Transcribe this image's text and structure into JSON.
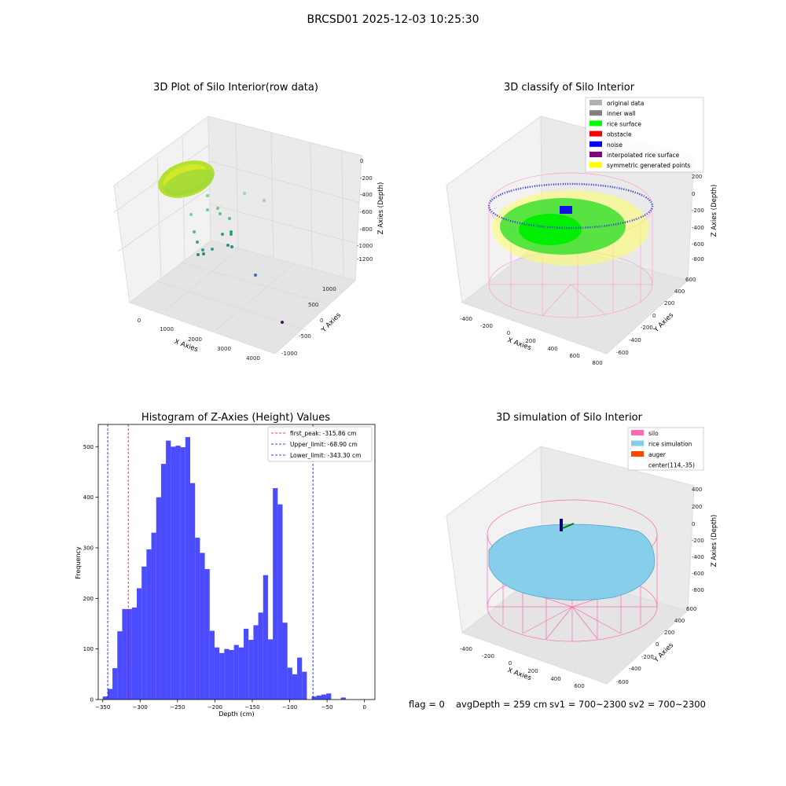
{
  "page": {
    "suptitle": "BRCSD01 2025-12-03 10:25:30",
    "status": {
      "flag": "flag = 0",
      "avg_depth": "avgDepth = 259 cm",
      "sv1": "sv1 = 700~2300",
      "sv2": "sv2 = 700~2300"
    }
  },
  "panels": {
    "raw": {
      "title": "3D Plot of Silo Interior(row data)",
      "xlabel": "X Axies",
      "ylabel": "Y Axies",
      "zlabel": "Z Axies (Depth)",
      "xticks": [
        "0",
        "1000",
        "2000",
        "3000",
        "4000"
      ],
      "yticks": [
        "1000",
        "500",
        "0",
        "-500",
        "-1000"
      ],
      "zticks": [
        "0",
        "-200",
        "-400",
        "-600",
        "-800",
        "-1000",
        "-1200"
      ]
    },
    "classify": {
      "title": "3D classify of Silo Interior",
      "xlabel": "X Axies",
      "ylabel": "Y Axies",
      "zlabel": "Z Axies (Depth)",
      "xticks": [
        "-400",
        "-200",
        "0",
        "200",
        "400",
        "600",
        "800"
      ],
      "yticks": [
        "600",
        "400",
        "200",
        "0",
        "-200",
        "-400",
        "-600"
      ],
      "zticks": [
        "200",
        "0",
        "-200",
        "-400",
        "-600",
        "-800"
      ],
      "legend": [
        {
          "label": "original data",
          "color": "#b0b0b0"
        },
        {
          "label": "inner wall",
          "color": "#808080"
        },
        {
          "label": "rice surface",
          "color": "#00ff00"
        },
        {
          "label": "obstacle",
          "color": "#ff0000"
        },
        {
          "label": "noise",
          "color": "#0000ff"
        },
        {
          "label": "interpolated rice surface",
          "color": "#800080"
        },
        {
          "label": "symmetric generated points",
          "color": "#ffff00"
        }
      ]
    },
    "simulation": {
      "title": "3D simulation of Silo Interior",
      "xlabel": "X Axies",
      "ylabel": "Y Axies",
      "zlabel": "Z Axies (Depth)",
      "xticks": [
        "-400",
        "-200",
        "0",
        "200",
        "400",
        "600"
      ],
      "yticks": [
        "600",
        "400",
        "200",
        "0",
        "-200",
        "-400",
        "-600"
      ],
      "zticks": [
        "400",
        "200",
        "0",
        "-200",
        "-400",
        "-600",
        "-800"
      ],
      "legend": [
        {
          "label": "silo",
          "color": "#ff69b4"
        },
        {
          "label": "rice simulation",
          "color": "#87ceeb"
        },
        {
          "label": "auger",
          "color": "#ff4500"
        },
        {
          "label": "center(114,-35)",
          "color": ""
        }
      ]
    }
  },
  "chart_data": {
    "type": "bar",
    "title": "Histogram of Z-Axies (Height) Values",
    "xlabel": "Depth (cm)",
    "ylabel": "Frequency",
    "xlim": [
      -356,
      14
    ],
    "ylim": [
      0,
      544
    ],
    "xticks": [
      -350,
      -300,
      -250,
      -200,
      -150,
      -100,
      -50,
      0
    ],
    "yticks": [
      0,
      100,
      200,
      300,
      400,
      500
    ],
    "bar_color": "#0000ff",
    "bin_edges_start": -350,
    "bin_width": 6.5,
    "values": [
      6,
      21,
      62,
      135,
      179,
      179,
      182,
      220,
      263,
      297,
      330,
      400,
      466,
      512,
      500,
      502,
      499,
      519,
      428,
      320,
      290,
      258,
      136,
      103,
      92,
      100,
      98,
      108,
      103,
      140,
      118,
      147,
      172,
      246,
      119,
      418,
      386,
      152,
      63,
      50,
      83,
      55,
      0,
      6,
      8,
      10,
      12,
      0,
      0,
      4
    ],
    "lines": [
      {
        "label": "first_peak: -315.86 cm",
        "x": -315.86,
        "color": "#ff0000"
      },
      {
        "label": "Upper_limit: -68.90 cm",
        "x": -68.9,
        "color": "#0000ff"
      },
      {
        "label": "Lower_limit: -343.30 cm",
        "x": -343.3,
        "color": "#0000ff"
      }
    ],
    "legend_position": "top-right"
  }
}
